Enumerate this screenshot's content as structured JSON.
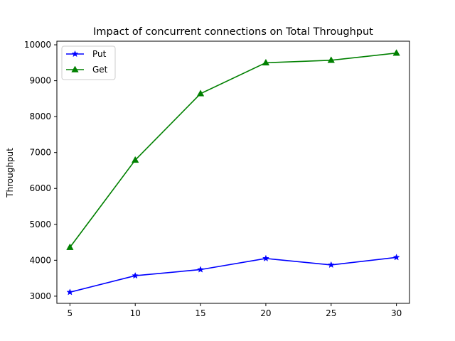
{
  "chart_data": {
    "type": "line",
    "title": "Impact of concurrent connections on Total Throughput",
    "xlabel": "",
    "ylabel": "Throughput",
    "x": [
      5,
      10,
      15,
      20,
      25,
      30
    ],
    "xlim": [
      4,
      31
    ],
    "ylim": [
      2800,
      10100
    ],
    "x_ticks": [
      5,
      10,
      15,
      20,
      25,
      30
    ],
    "y_ticks": [
      3000,
      4000,
      5000,
      6000,
      7000,
      8000,
      9000,
      10000
    ],
    "grid": false,
    "legend_position": "upper-left",
    "series": [
      {
        "name": "Put",
        "color": "#0000ff",
        "marker": "star",
        "values": [
          3110,
          3570,
          3740,
          4050,
          3870,
          4080
        ]
      },
      {
        "name": "Get",
        "color": "#008000",
        "marker": "triangle-up",
        "values": [
          4360,
          6790,
          8640,
          9500,
          9570,
          9770
        ]
      }
    ]
  }
}
